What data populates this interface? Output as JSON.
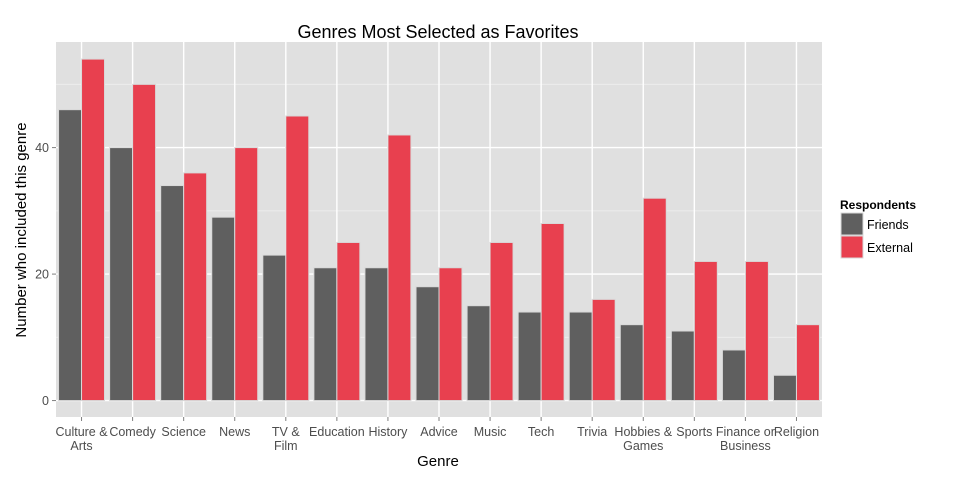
{
  "chart_data": {
    "type": "bar",
    "title": "Genres Most Selected as Favorites",
    "xlabel": "Genre",
    "ylabel": "Number who included this genre",
    "categories": [
      [
        "Culture &",
        "Arts"
      ],
      [
        "Comedy"
      ],
      [
        "Science"
      ],
      [
        "News"
      ],
      [
        "TV &",
        "Film"
      ],
      [
        "Education"
      ],
      [
        "History"
      ],
      [
        "Advice"
      ],
      [
        "Music"
      ],
      [
        "Tech"
      ],
      [
        "Trivia"
      ],
      [
        "Hobbies &",
        "Games"
      ],
      [
        "Sports"
      ],
      [
        "Finance or",
        "Business"
      ],
      [
        "Religion"
      ]
    ],
    "series": [
      {
        "name": "Friends",
        "color": "#5f5f5f",
        "values": [
          46,
          40,
          34,
          29,
          23,
          21,
          21,
          18,
          15,
          14,
          14,
          12,
          11,
          8,
          4
        ]
      },
      {
        "name": "External",
        "color": "#e8404f",
        "values": [
          54,
          50,
          36,
          40,
          45,
          25,
          42,
          21,
          25,
          28,
          16,
          32,
          22,
          22,
          12
        ]
      }
    ],
    "ylim": [
      -2.6,
      56.7
    ],
    "yticks": [
      0,
      20,
      40
    ],
    "grid": true,
    "legend": {
      "title": "Respondents",
      "placement": "right"
    },
    "colors": {
      "panel": "#e0e0e0",
      "grid_major": "#ffffff",
      "grid_minor": "#ededed",
      "bar_outline": "#d9d9d9"
    }
  }
}
